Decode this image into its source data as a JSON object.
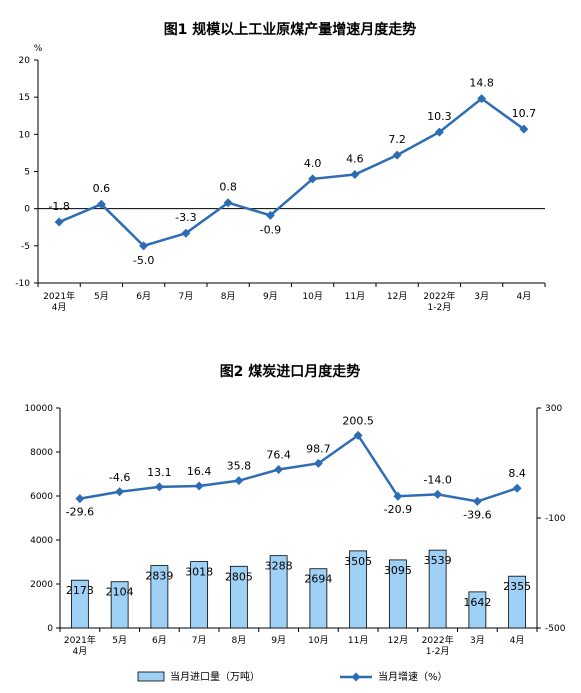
{
  "chart_data": [
    {
      "type": "line",
      "title": "图1  规模以上工业原煤产量增速月度走势",
      "unit_label": "%",
      "categories": [
        [
          "2021年",
          "4月"
        ],
        [
          "5月"
        ],
        [
          "6月"
        ],
        [
          "7月"
        ],
        [
          "8月"
        ],
        [
          "9月"
        ],
        [
          "10月"
        ],
        [
          "11月"
        ],
        [
          "12月"
        ],
        [
          "2022年",
          "1-2月"
        ],
        [
          "3月"
        ],
        [
          "4月"
        ]
      ],
      "y_ticks": [
        "20",
        "15",
        "10",
        "5",
        "0",
        "-5",
        "-10"
      ],
      "ylim": [
        -10,
        20
      ],
      "series": [
        {
          "color": "#2e6db4",
          "values": [
            -1.8,
            0.6,
            -5.0,
            -3.3,
            0.8,
            -0.9,
            4.0,
            4.6,
            7.2,
            10.3,
            14.8,
            10.7
          ],
          "labels": [
            "-1.8",
            "0.6",
            "-5.0",
            "-3.3",
            "0.8",
            "-0.9",
            "4.0",
            "4.6",
            "7.2",
            "10.3",
            "14.8",
            "10.7"
          ]
        }
      ],
      "grid": false
    },
    {
      "type": "bar+line",
      "title": "图2  煤炭进口月度走势",
      "categories": [
        [
          "2021年",
          "4月"
        ],
        [
          "5月"
        ],
        [
          "6月"
        ],
        [
          "7月"
        ],
        [
          "8月"
        ],
        [
          "9月"
        ],
        [
          "10月"
        ],
        [
          "11月"
        ],
        [
          "12月"
        ],
        [
          "2022年",
          "1-2月"
        ],
        [
          "3月"
        ],
        [
          "4月"
        ]
      ],
      "y_left_ticks": [
        "10000",
        "8000",
        "6000",
        "4000",
        "2000",
        "0"
      ],
      "y_left_lim": [
        0,
        10000
      ],
      "y_right_ticks": [
        "300",
        "-100",
        "-500"
      ],
      "y_right_lim": [
        -500,
        300
      ],
      "bars": {
        "name": "当月进口量（万吨）",
        "color": "#9fd0f5",
        "values": [
          2173,
          2104,
          2839,
          3018,
          2805,
          3288,
          2694,
          3505,
          3095,
          3539,
          1642,
          2355
        ],
        "labels": [
          "2173",
          "2104",
          "2839",
          "3018",
          "2805",
          "3288",
          "2694",
          "3505",
          "3095",
          "3539",
          "1642",
          "2355"
        ]
      },
      "line": {
        "name": "当月增速（%）",
        "color": "#2e6db4",
        "values": [
          -29.6,
          -4.6,
          13.1,
          16.4,
          35.8,
          76.4,
          98.7,
          200.5,
          -20.9,
          -14.0,
          -39.6,
          8.4
        ],
        "labels": [
          "-29.6",
          "-4.6",
          "13.1",
          "16.4",
          "35.8",
          "76.4",
          "98.7",
          "200.5",
          "-20.9",
          "-14.0",
          "-39.6",
          "8.4"
        ]
      },
      "legend_position": "bottom",
      "grid": false
    }
  ]
}
